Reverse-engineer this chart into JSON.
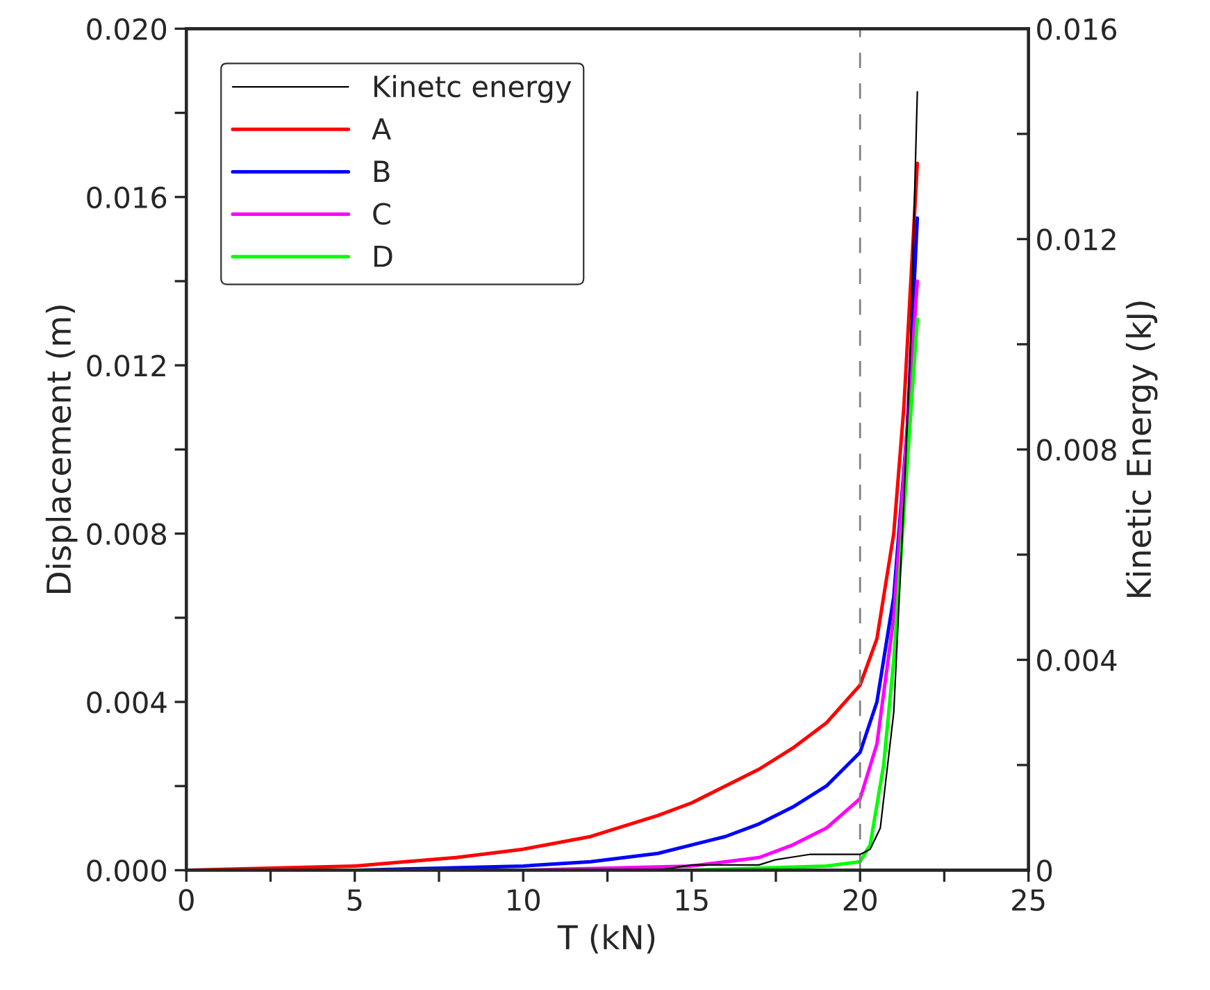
{
  "chart_data": {
    "type": "line",
    "xlabel": "T (kN)",
    "ylabel": "Displacement (m)",
    "y2label": "Kinetic Energy (kJ)",
    "xlim": [
      0,
      25
    ],
    "xticks": [
      0,
      {
        "value": 2.5,
        "label": null
      },
      5,
      {
        "value": 7.5,
        "label": null
      },
      10,
      {
        "value": 12.5,
        "label": null
      },
      15,
      {
        "value": 17.5,
        "label": null
      },
      20,
      {
        "value": 22.5,
        "label": null
      },
      25
    ],
    "ylim": [
      0,
      0.02
    ],
    "yticks": [
      {
        "value": 0,
        "label": "0.000"
      },
      {
        "value": 0.002,
        "label": null
      },
      {
        "value": 0.004,
        "label": "0.004"
      },
      {
        "value": 0.006,
        "label": null
      },
      {
        "value": 0.008,
        "label": "0.008"
      },
      {
        "value": 0.01,
        "label": null
      },
      {
        "value": 0.012,
        "label": "0.012"
      },
      {
        "value": 0.014,
        "label": null
      },
      {
        "value": 0.016,
        "label": "0.016"
      },
      {
        "value": 0.018,
        "label": null
      },
      {
        "value": 0.02,
        "label": "0.020"
      }
    ],
    "y2lim": [
      0,
      0.016
    ],
    "y2ticks": [
      0,
      {
        "value": 0.002,
        "label": null
      },
      0.004,
      {
        "value": 0.006,
        "label": null
      },
      0.008,
      {
        "value": 0.01,
        "label": null
      },
      0.012,
      {
        "value": 0.014,
        "label": null
      },
      0.016
    ],
    "legend": "top left",
    "grid": false,
    "marker": "none",
    "ref_lines": [
      {
        "axis": "x",
        "value": 20,
        "color": "#808080",
        "line_style": "dashed"
      }
    ],
    "series": [
      {
        "name": "Kinetc energy",
        "color": "#000000",
        "axis": "y2",
        "x": [
          0,
          5,
          10,
          14,
          15,
          16,
          17,
          17.5,
          18,
          18.5,
          19,
          19.5,
          20,
          20.3,
          20.6,
          21,
          21.3,
          21.5,
          21.7
        ],
        "values": [
          0,
          0,
          0,
          0,
          0.0001,
          0.0001,
          0.0001,
          0.0002,
          0.00025,
          0.0003,
          0.0003,
          0.0003,
          0.0003,
          0.0004,
          0.0008,
          0.003,
          0.007,
          0.01,
          0.0148
        ]
      },
      {
        "name": "A",
        "color": "#ff0000",
        "x": [
          0,
          5,
          6.5,
          8,
          10,
          12,
          14,
          15,
          16,
          17,
          18,
          19,
          20,
          20.5,
          21,
          21.3,
          21.7
        ],
        "values": [
          0,
          0.0001,
          0.0002,
          0.0003,
          0.0005,
          0.0008,
          0.0013,
          0.0016,
          0.002,
          0.0024,
          0.0029,
          0.0035,
          0.0044,
          0.0055,
          0.008,
          0.011,
          0.0168
        ]
      },
      {
        "name": "B",
        "color": "#0000ff",
        "x": [
          0,
          5,
          10,
          12,
          14,
          16,
          17,
          18,
          19,
          20,
          20.5,
          21,
          21.4,
          21.7
        ],
        "values": [
          0,
          0,
          0.0001,
          0.0002,
          0.0004,
          0.0008,
          0.0011,
          0.0015,
          0.002,
          0.0028,
          0.004,
          0.0065,
          0.0105,
          0.0155
        ]
      },
      {
        "name": "C",
        "color": "#ff00ff",
        "x": [
          0,
          10,
          15,
          17,
          18,
          19,
          20,
          20.5,
          21,
          21.4,
          21.7
        ],
        "values": [
          0,
          0,
          0.0001,
          0.0003,
          0.0006,
          0.001,
          0.0017,
          0.003,
          0.006,
          0.0105,
          0.014
        ]
      },
      {
        "name": "D",
        "color": "#00ff00",
        "x": [
          0,
          10,
          15,
          19,
          20,
          20.3,
          20.7,
          21,
          21.3,
          21.7
        ],
        "values": [
          0,
          0,
          0,
          0.0001,
          0.0002,
          0.0006,
          0.0025,
          0.005,
          0.0085,
          0.0131
        ]
      }
    ]
  }
}
